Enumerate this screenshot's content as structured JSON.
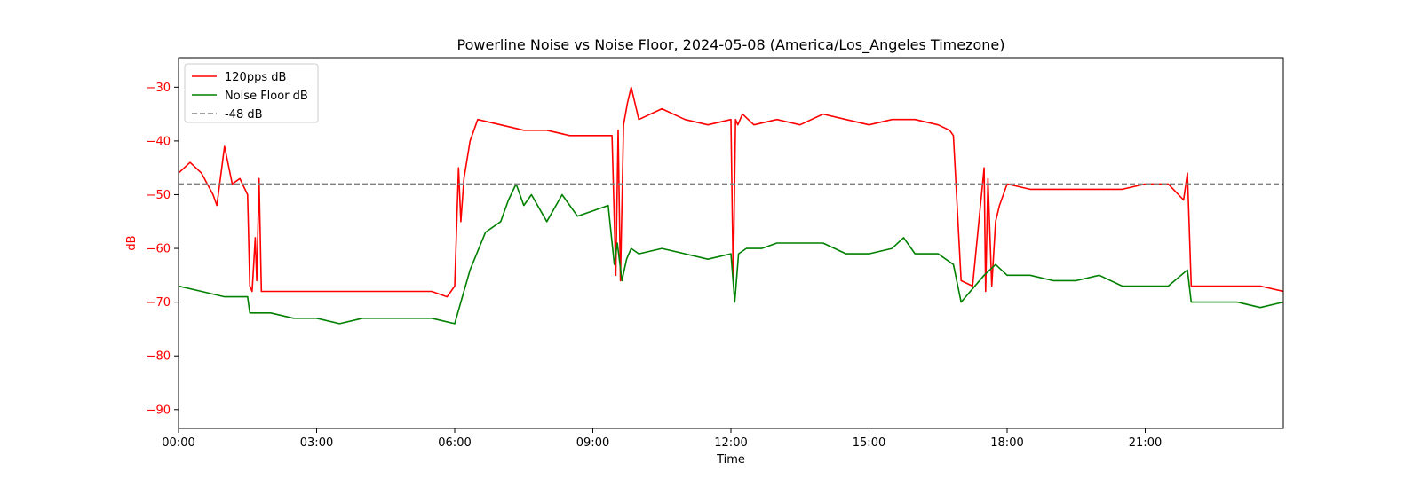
{
  "chart_data": {
    "type": "line",
    "title": "Powerline Noise vs Noise Floor, 2024-05-08 (America/Los_Angeles Timezone)",
    "xlabel": "Time",
    "ylabel": "dB",
    "xlim": [
      "00:00",
      "24:00"
    ],
    "ylim": [
      -93.5,
      -24.5
    ],
    "x_ticks": [
      "00:00",
      "03:00",
      "06:00",
      "09:00",
      "12:00",
      "15:00",
      "18:00",
      "21:00"
    ],
    "y_ticks": [
      -30,
      -40,
      -50,
      -60,
      -70,
      -80,
      -90
    ],
    "grid": false,
    "legend": "top-left",
    "colors": {
      "red": "#ff0000",
      "green": "#008000",
      "gray": "#808080",
      "ylabel_color": "#ff0000"
    },
    "series": [
      {
        "name": "120pps dB",
        "color": "#ff0000",
        "style": "solid",
        "x": [
          "00:00",
          "00:15",
          "00:30",
          "00:45",
          "00:50",
          "01:00",
          "01:10",
          "01:20",
          "01:30",
          "01:33",
          "01:36",
          "01:40",
          "01:42",
          "01:45",
          "01:48",
          "01:52",
          "02:00",
          "02:30",
          "03:00",
          "03:30",
          "04:00",
          "04:30",
          "05:00",
          "05:30",
          "05:50",
          "06:00",
          "06:05",
          "06:08",
          "06:12",
          "06:20",
          "06:30",
          "07:00",
          "07:30",
          "08:00",
          "08:30",
          "09:00",
          "09:25",
          "09:30",
          "09:33",
          "09:36",
          "09:40",
          "09:45",
          "09:50",
          "10:00",
          "10:30",
          "11:00",
          "11:30",
          "12:00",
          "12:03",
          "12:06",
          "12:09",
          "12:15",
          "12:30",
          "13:00",
          "13:30",
          "14:00",
          "14:30",
          "15:00",
          "15:30",
          "16:00",
          "16:30",
          "16:45",
          "16:50",
          "17:00",
          "17:15",
          "17:30",
          "17:32",
          "17:35",
          "17:40",
          "17:45",
          "17:50",
          "18:00",
          "18:30",
          "19:00",
          "19:30",
          "20:00",
          "20:30",
          "21:00",
          "21:30",
          "21:50",
          "21:55",
          "22:00",
          "22:30",
          "23:00",
          "23:30",
          "24:00"
        ],
        "y": [
          -46,
          -44,
          -46,
          -50,
          -52,
          -41,
          -48,
          -47,
          -50,
          -67,
          -68,
          -58,
          -66,
          -47,
          -68,
          -68,
          -68,
          -68,
          -68,
          -68,
          -68,
          -68,
          -68,
          -68,
          -69,
          -67,
          -45,
          -55,
          -47,
          -40,
          -36,
          -37,
          -38,
          -38,
          -39,
          -39,
          -39,
          -65,
          -38,
          -66,
          -37,
          -33,
          -30,
          -36,
          -34,
          -36,
          -37,
          -36,
          -66,
          -36,
          -37,
          -35,
          -37,
          -36,
          -37,
          -35,
          -36,
          -37,
          -36,
          -36,
          -37,
          -38,
          -39,
          -66,
          -67,
          -45,
          -68,
          -47,
          -67,
          -55,
          -52,
          -48,
          -49,
          -49,
          -49,
          -49,
          -49,
          -48,
          -48,
          -51,
          -46,
          -67,
          -67,
          -67,
          -67,
          -68
        ]
      },
      {
        "name": "Noise Floor dB",
        "color": "#008000",
        "style": "solid",
        "x": [
          "00:00",
          "00:30",
          "01:00",
          "01:30",
          "01:33",
          "02:00",
          "02:30",
          "03:00",
          "03:30",
          "04:00",
          "04:30",
          "05:00",
          "05:30",
          "06:00",
          "06:10",
          "06:20",
          "06:40",
          "07:00",
          "07:10",
          "07:20",
          "07:30",
          "07:40",
          "08:00",
          "08:20",
          "08:40",
          "09:00",
          "09:20",
          "09:28",
          "09:32",
          "09:38",
          "09:44",
          "09:50",
          "10:00",
          "10:30",
          "11:00",
          "11:30",
          "12:00",
          "12:05",
          "12:10",
          "12:20",
          "12:40",
          "13:00",
          "13:30",
          "14:00",
          "14:30",
          "15:00",
          "15:30",
          "15:45",
          "16:00",
          "16:30",
          "16:50",
          "17:00",
          "17:30",
          "17:45",
          "18:00",
          "18:30",
          "19:00",
          "19:30",
          "20:00",
          "20:30",
          "21:00",
          "21:30",
          "21:55",
          "22:00",
          "22:30",
          "23:00",
          "23:30",
          "24:00"
        ],
        "y": [
          -67,
          -68,
          -69,
          -69,
          -72,
          -72,
          -73,
          -73,
          -74,
          -73,
          -73,
          -73,
          -73,
          -74,
          -69,
          -64,
          -57,
          -55,
          -51,
          -48,
          -52,
          -50,
          -55,
          -50,
          -54,
          -53,
          -52,
          -63,
          -59,
          -66,
          -62,
          -60,
          -61,
          -60,
          -61,
          -62,
          -61,
          -70,
          -61,
          -60,
          -60,
          -59,
          -59,
          -59,
          -61,
          -61,
          -60,
          -58,
          -61,
          -61,
          -63,
          -70,
          -65,
          -63,
          -65,
          -65,
          -66,
          -66,
          -65,
          -67,
          -67,
          -67,
          -64,
          -70,
          -70,
          -70,
          -71,
          -70
        ]
      },
      {
        "name": "-48 dB",
        "color": "#808080",
        "style": "dashed",
        "x": [
          "00:00",
          "24:00"
        ],
        "y": [
          -48,
          -48
        ]
      }
    ]
  }
}
